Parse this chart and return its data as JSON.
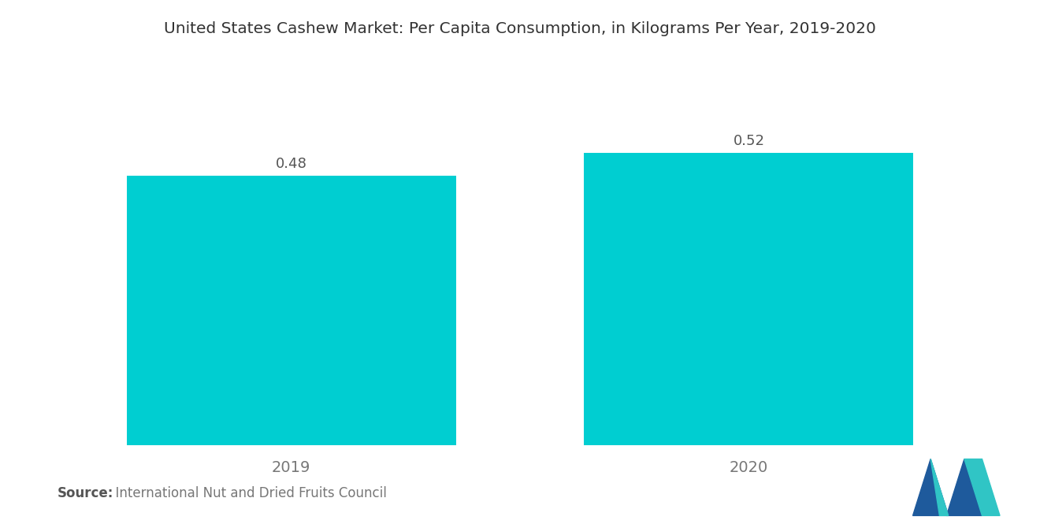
{
  "title": "United States Cashew Market: Per Capita Consumption, in Kilograms Per Year, 2019-2020",
  "categories": [
    "2019",
    "2020"
  ],
  "values": [
    0.48,
    0.52
  ],
  "bar_color": "#00CED1",
  "background_color": "#FFFFFF",
  "title_fontsize": 14.5,
  "label_fontsize": 14,
  "value_fontsize": 13,
  "source_bold": "Source:",
  "source_normal": "  International Nut and Dried Fruits Council",
  "source_fontsize": 12,
  "ylim": [
    0,
    0.68
  ],
  "bar_width": 0.72,
  "bar_positions": [
    0,
    1
  ],
  "xlim": [
    -0.5,
    1.5
  ],
  "logo_blue": "#1E5A9C",
  "logo_teal": "#30C5C5"
}
